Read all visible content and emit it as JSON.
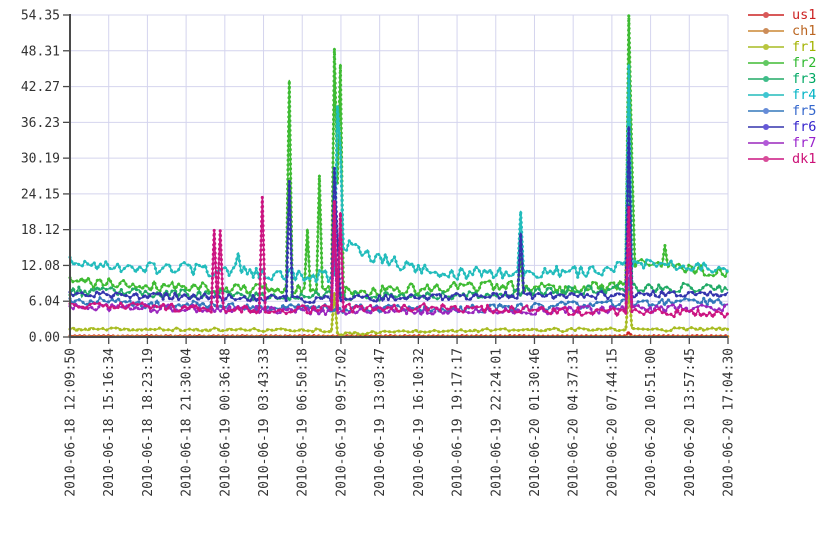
{
  "chart_data": {
    "type": "line",
    "title": "",
    "xlabel": "",
    "ylabel": "",
    "grid": true,
    "legend_position": "top-right-outside",
    "ylim": [
      0,
      54.35
    ],
    "samples": 220,
    "y_ticks": [
      {
        "value": 0.0,
        "label": "0.00"
      },
      {
        "value": 6.04,
        "label": "6.04"
      },
      {
        "value": 12.08,
        "label": "12.08"
      },
      {
        "value": 18.12,
        "label": "18.12"
      },
      {
        "value": 24.15,
        "label": "24.15"
      },
      {
        "value": 30.19,
        "label": "30.19"
      },
      {
        "value": 36.23,
        "label": "36.23"
      },
      {
        "value": 42.27,
        "label": "42.27"
      },
      {
        "value": 48.31,
        "label": "48.31"
      },
      {
        "value": 54.35,
        "label": "54.35"
      }
    ],
    "x_tick_labels": [
      "2010-06-18 12:09:50",
      "2010-06-18 15:16:34",
      "2010-06-18 18:23:19",
      "2010-06-18 21:30:04",
      "2010-06-19 00:36:48",
      "2010-06-19 03:43:33",
      "2010-06-19 06:50:18",
      "2010-06-19 09:57:02",
      "2010-06-19 13:03:47",
      "2010-06-19 16:10:32",
      "2010-06-19 19:17:17",
      "2010-06-19 22:24:01",
      "2010-06-20 01:30:46",
      "2010-06-20 04:37:31",
      "2010-06-20 07:44:15",
      "2010-06-20 10:51:00",
      "2010-06-20 13:57:45",
      "2010-06-20 17:04:30"
    ],
    "colors": {
      "grid": "#d4d4ee",
      "spine": "#4a4a4a",
      "tick_text": "#333333"
    },
    "series": [
      {
        "name": "us1",
        "color": "#cc2222",
        "label_color": "#cc2222",
        "seed": 11,
        "noise": 0.06,
        "base": [
          [
            0,
            0.18
          ],
          [
            1,
            0.18
          ]
        ],
        "spikes": [
          [
            0.848,
            0.85,
            1
          ]
        ]
      },
      {
        "name": "ch1",
        "color": "#cc8833",
        "label_color": "#bb6622",
        "seed": 23,
        "noise": 0.02,
        "base": [
          [
            0,
            0.06
          ],
          [
            1,
            0.06
          ]
        ],
        "spikes": []
      },
      {
        "name": "fr1",
        "color": "#a8bc22",
        "label_color": "#a3b300",
        "seed": 37,
        "noise": 0.3,
        "base": [
          [
            0,
            1.3
          ],
          [
            0.39,
            1.15
          ],
          [
            0.415,
            0.45
          ],
          [
            0.46,
            0.8
          ],
          [
            0.55,
            1.1
          ],
          [
            1,
            1.35
          ]
        ],
        "spikes": [
          [
            0.4012,
            7.5,
            1
          ],
          [
            0.848,
            8.3,
            1
          ]
        ]
      },
      {
        "name": "fr2",
        "color": "#3fbb33",
        "label_color": "#2eb82e",
        "seed": 41,
        "noise": 1.0,
        "base": [
          [
            0,
            9.3
          ],
          [
            0.25,
            8.2
          ],
          [
            0.45,
            7.6
          ],
          [
            0.62,
            8.6
          ],
          [
            0.75,
            8.3
          ],
          [
            0.845,
            8.8
          ],
          [
            0.865,
            12.8
          ],
          [
            0.93,
            11.5
          ],
          [
            1,
            10.8
          ]
        ],
        "spikes": [
          [
            0.3343,
            43.3,
            1
          ],
          [
            0.3602,
            18.2,
            1
          ],
          [
            0.3769,
            27.3,
            1
          ],
          [
            0.4012,
            48.7,
            2
          ],
          [
            0.4103,
            46.0,
            1
          ],
          [
            0.6839,
            13.5,
            1
          ],
          [
            0.848,
            54.35,
            2
          ],
          [
            0.9057,
            15.5,
            1
          ]
        ]
      },
      {
        "name": "fr3",
        "color": "#21aa66",
        "label_color": "#00a864",
        "seed": 53,
        "noise": 0.8,
        "base": [
          [
            0,
            7.8
          ],
          [
            0.3,
            6.9
          ],
          [
            0.6,
            7.1
          ],
          [
            0.87,
            8.3
          ],
          [
            1,
            8.4
          ]
        ],
        "spikes": [
          [
            0.4012,
            20.0,
            1
          ],
          [
            0.848,
            30.0,
            1
          ]
        ]
      },
      {
        "name": "fr4",
        "color": "#22bcbc",
        "label_color": "#00b3c4",
        "seed": 67,
        "noise": 1.1,
        "base": [
          [
            0,
            12.4
          ],
          [
            0.22,
            11.2
          ],
          [
            0.37,
            10.2
          ],
          [
            0.405,
            10.5
          ],
          [
            0.412,
            16.0
          ],
          [
            0.47,
            13.2
          ],
          [
            0.56,
            10.8
          ],
          [
            0.78,
            11.0
          ],
          [
            0.87,
            12.2
          ],
          [
            1,
            11.6
          ]
        ],
        "spikes": [
          [
            0.2553,
            14.2,
            1
          ],
          [
            0.4057,
            39.0,
            1
          ],
          [
            0.4103,
            32.0,
            1
          ],
          [
            0.6839,
            21.2,
            1
          ],
          [
            0.848,
            46.0,
            1
          ]
        ]
      },
      {
        "name": "fr5",
        "color": "#3377bb",
        "label_color": "#3366cc",
        "seed": 71,
        "noise": 0.75,
        "base": [
          [
            0,
            6.1
          ],
          [
            0.3,
            5.0
          ],
          [
            0.55,
            4.6
          ],
          [
            0.82,
            5.6
          ],
          [
            1,
            6.0
          ]
        ],
        "spikes": [
          [
            0.848,
            10.0,
            1
          ]
        ]
      },
      {
        "name": "fr6",
        "color": "#3434ad",
        "label_color": "#3322cc",
        "seed": 83,
        "noise": 0.65,
        "base": [
          [
            0,
            7.3
          ],
          [
            0.35,
            6.3
          ],
          [
            0.62,
            6.9
          ],
          [
            1,
            7.3
          ]
        ],
        "spikes": [
          [
            0.3343,
            26.3,
            1
          ],
          [
            0.4012,
            28.5,
            2
          ],
          [
            0.6839,
            17.5,
            1
          ],
          [
            0.848,
            35.5,
            1
          ]
        ]
      },
      {
        "name": "fr7",
        "color": "#9a26bd",
        "label_color": "#9922cc",
        "seed": 97,
        "noise": 0.7,
        "base": [
          [
            0,
            5.1
          ],
          [
            0.35,
            4.4
          ],
          [
            0.72,
            4.4
          ],
          [
            1,
            5.0
          ]
        ],
        "spikes": [
          [
            0.4012,
            19.0,
            1
          ],
          [
            0.848,
            15.0,
            1
          ]
        ]
      },
      {
        "name": "dk1",
        "color": "#cc1581",
        "label_color": "#cc1177",
        "seed": 113,
        "noise": 0.75,
        "base": [
          [
            0,
            5.3
          ],
          [
            0.3,
            4.6
          ],
          [
            0.55,
            5.0
          ],
          [
            0.82,
            4.2
          ],
          [
            1,
            4.0
          ]
        ],
        "spikes": [
          [
            0.2204,
            18.1,
            1
          ],
          [
            0.2295,
            18.0,
            1
          ],
          [
            0.2918,
            23.6,
            1
          ],
          [
            0.4012,
            23.0,
            1
          ],
          [
            0.4103,
            21.0,
            1
          ],
          [
            0.848,
            22.0,
            1
          ]
        ]
      }
    ]
  }
}
